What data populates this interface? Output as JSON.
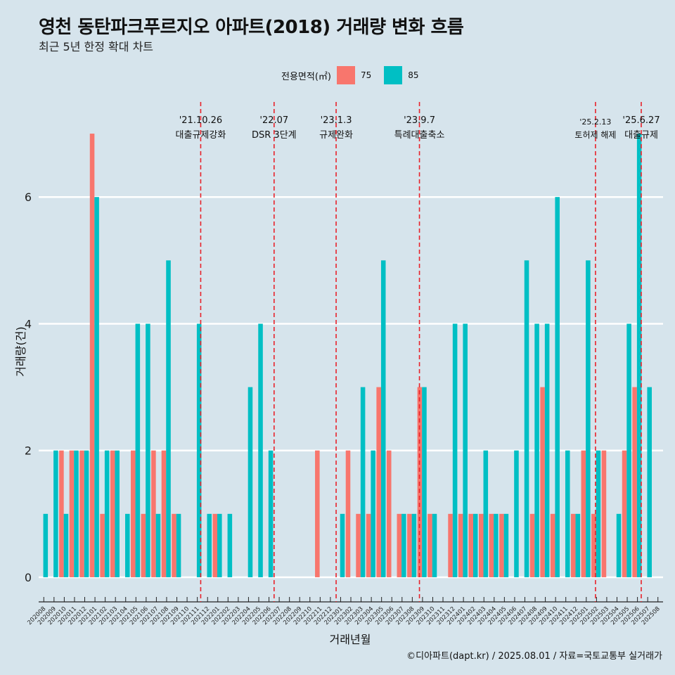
{
  "title": "영천 동탄파크푸르지오 아파트(2018) 거래량 변화 흐름",
  "subtitle": "최근 5년 한정 확대 차트",
  "caption": "©디아파트(dapt.kr) / 2025.08.01 / 자료=국토교통부 실거래가",
  "colors": {
    "background": "#d6e4ec",
    "grid": "#ffffff",
    "event_line": "#e8222a"
  },
  "chart_data": {
    "type": "bar",
    "xlabel": "거래년월",
    "ylabel": "거래량(건)",
    "ylim": [
      -0.3,
      7.5
    ],
    "yticks": [
      0,
      2,
      4,
      6
    ],
    "grid": true,
    "legend": {
      "title": "전용면적(㎡)",
      "placement": "top"
    },
    "categories": [
      "202008",
      "202009",
      "202010",
      "202011",
      "202012",
      "202101",
      "202102",
      "202103",
      "202104",
      "202105",
      "202106",
      "202107",
      "202108",
      "202109",
      "202110",
      "202111",
      "202112",
      "202201",
      "202202",
      "202203",
      "202204",
      "202205",
      "202206",
      "202207",
      "202208",
      "202209",
      "202210",
      "202211",
      "202212",
      "202301",
      "202302",
      "202303",
      "202304",
      "202305",
      "202306",
      "202307",
      "202308",
      "202309",
      "202310",
      "202311",
      "202312",
      "202401",
      "202402",
      "202403",
      "202404",
      "202405",
      "202406",
      "202407",
      "202408",
      "202409",
      "202410",
      "202411",
      "202412",
      "202501",
      "202502",
      "202503",
      "202504",
      "202505",
      "202506",
      "202507",
      "202508"
    ],
    "series": [
      {
        "name": "75",
        "color": "#f8766d",
        "values": [
          0,
          0,
          2,
          2,
          2,
          7,
          1,
          2,
          0,
          2,
          1,
          2,
          2,
          1,
          0,
          0,
          0,
          1,
          0,
          0,
          0,
          0,
          0,
          0,
          0,
          0,
          0,
          2,
          0,
          0,
          2,
          1,
          1,
          3,
          2,
          1,
          1,
          3,
          1,
          0,
          1,
          1,
          1,
          1,
          1,
          1,
          0,
          0,
          1,
          3,
          1,
          0,
          1,
          2,
          1,
          2,
          0,
          2,
          3,
          0,
          0
        ]
      },
      {
        "name": "85",
        "color": "#00bfc4",
        "values": [
          1,
          2,
          1,
          2,
          2,
          6,
          2,
          2,
          1,
          4,
          4,
          1,
          5,
          1,
          0,
          4,
          1,
          1,
          1,
          0,
          3,
          4,
          2,
          0,
          0,
          0,
          0,
          0,
          0,
          1,
          0,
          3,
          2,
          5,
          0,
          1,
          1,
          3,
          1,
          0,
          4,
          4,
          1,
          2,
          1,
          1,
          2,
          5,
          4,
          4,
          6,
          2,
          1,
          5,
          2,
          0,
          1,
          4,
          7,
          3,
          0
        ]
      }
    ],
    "events": [
      {
        "date": "'21.10.26",
        "label": "대출규제강화",
        "at": "202111",
        "fraction": 0.83
      },
      {
        "date": "'22.07",
        "label": "DSR 3단계",
        "at": "202207",
        "fraction": 0.0
      },
      {
        "date": "'23.1.3",
        "label": "규제완화",
        "at": "202301",
        "fraction": 0.06
      },
      {
        "date": "'23.9.7",
        "label": "특례대출축소",
        "at": "202309",
        "fraction": 0.2
      },
      {
        "date": "'25.2.13",
        "label": "토허제 해제",
        "at": "202502",
        "fraction": 0.4
      },
      {
        "date": "'25.6.27",
        "label": "대출규제",
        "at": "202506",
        "fraction": 0.87
      }
    ]
  }
}
